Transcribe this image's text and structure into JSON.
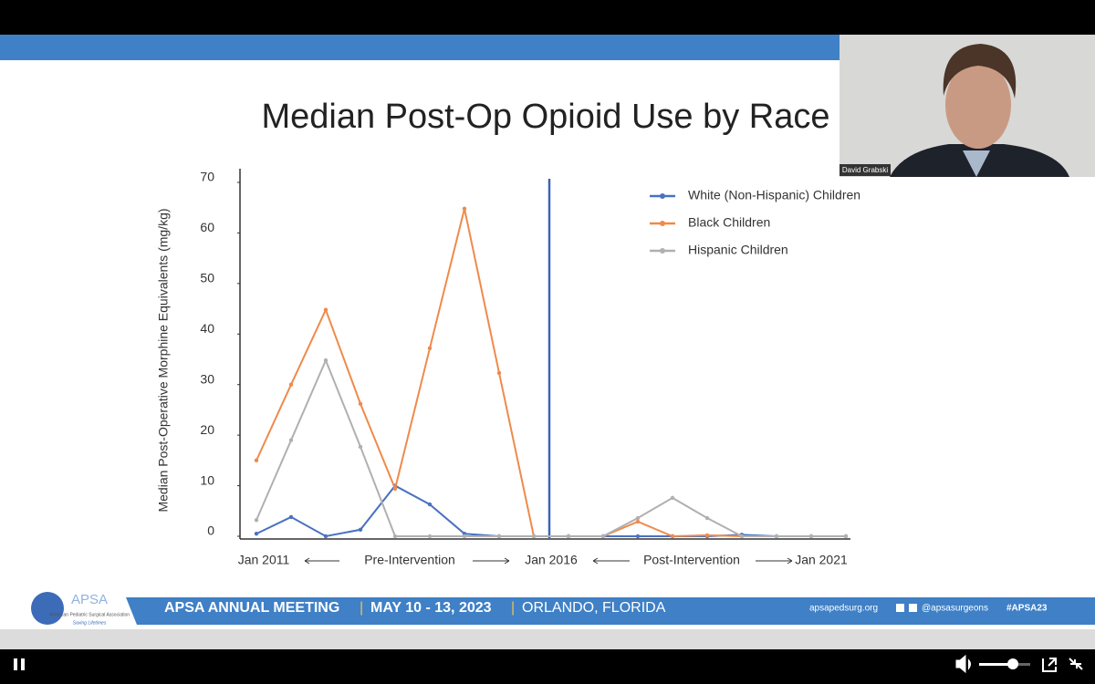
{
  "chart_data": {
    "type": "line",
    "title": "Median Post-Op Opioid Use by Race",
    "y_label": "Median Post-Operative Morphine Equivalents (mg/kg)",
    "categories": [
      null,
      null,
      null,
      null,
      null,
      null,
      null,
      null,
      null,
      null,
      null,
      null,
      null,
      null,
      null,
      null,
      null,
      null
    ],
    "x_annotations": [
      "Jan 2011",
      "Pre-Intervention",
      "Jan 2016",
      "Post-Intervention",
      "Jan 2021"
    ],
    "series": [
      {
        "name": "White (Non-Hispanic) Children",
        "color": "#4a72c0",
        "values": [
          0.5,
          3.8,
          0,
          1.3,
          10,
          6.3,
          0.5,
          0,
          0,
          0,
          0,
          0,
          0,
          0,
          0.3,
          0,
          0,
          0
        ]
      },
      {
        "name": "Black Children",
        "color": "#ef8a4a",
        "values": [
          15,
          30,
          44.8,
          26.2,
          9.4,
          37.2,
          64.8,
          32.3,
          0,
          0,
          0,
          2.9,
          0,
          0.2,
          0,
          null,
          null,
          null
        ]
      },
      {
        "name": "Hispanic Children",
        "color": "#b0b0b0",
        "values": [
          3.2,
          19,
          34.8,
          17.7,
          0,
          0,
          0,
          0,
          0,
          0,
          0,
          3.6,
          7.6,
          3.6,
          0,
          0,
          0,
          0
        ]
      }
    ],
    "ylim": [
      0,
      70
    ],
    "yticks": [
      0,
      10,
      20,
      30,
      40,
      50,
      60,
      70
    ],
    "legend": "top-right"
  },
  "webcam": {
    "name": "David Grabski"
  },
  "banner": {
    "logo": "APSA",
    "org": "American Pediatric Surgical Association",
    "tagline": "Saving Lifetimes",
    "meeting": "APSA ANNUAL MEETING",
    "dates": "MAY 10 - 13, 2023",
    "place": "ORLANDO, FLORIDA",
    "site": "apsapedsurg.org",
    "handle": "@apsasurgeons",
    "hashtag": "#APSA23"
  }
}
